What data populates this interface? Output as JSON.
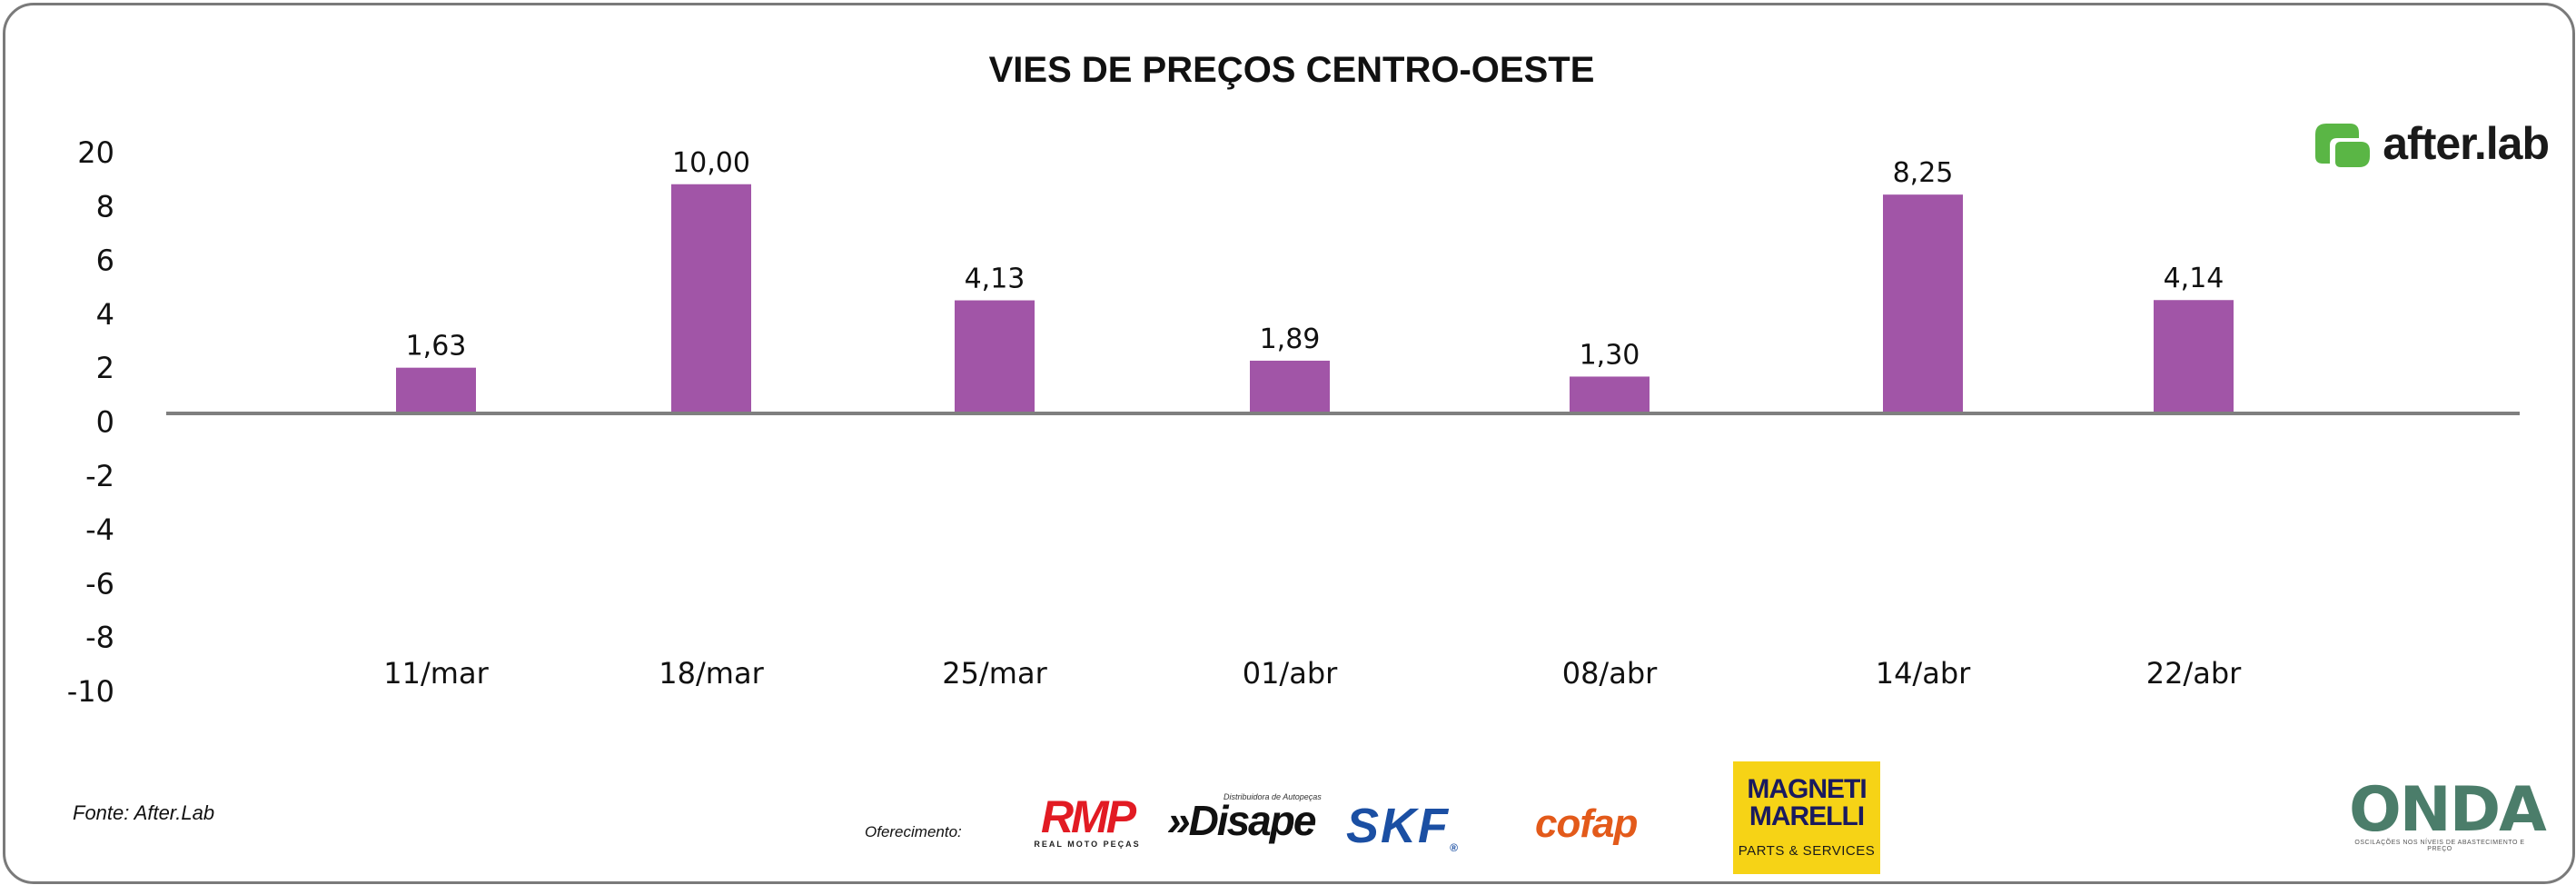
{
  "chart_data": {
    "type": "bar",
    "title": "VIES DE PREÇOS CENTRO-OESTE",
    "categories": [
      "11/mar",
      "18/mar",
      "25/mar",
      "01/abr",
      "08/abr",
      "14/abr",
      "22/abr"
    ],
    "values": [
      1.63,
      10.0,
      4.13,
      1.89,
      1.3,
      8.25,
      4.14
    ],
    "data_labels": [
      "1,63",
      "10,00",
      "4,13",
      "1,89",
      "1,30",
      "8,25",
      "4,14"
    ],
    "y_ticks": [
      "20",
      "8",
      "6",
      "4",
      "2",
      "0",
      "-2",
      "-4",
      "-6",
      "-8",
      "-10"
    ],
    "ylim": [
      -10,
      20
    ],
    "bar_color": "#a155a7",
    "axis_color": "#7f7f7f",
    "xlabel": "",
    "ylabel": "",
    "grid": false
  },
  "source": "Fonte: After.Lab",
  "offer_label": "Oferecimento:",
  "brand": {
    "name": "after.lab",
    "icon": "after-lab-logo-icon",
    "color": "#5ab645"
  },
  "sponsors": {
    "rmp": {
      "name": "RMP",
      "tagline": "REAL MOTO PEÇAS",
      "color": "#e21b23"
    },
    "disape": {
      "name": "»Disape",
      "tagline": "Distribuidora de Autopeças"
    },
    "skf": {
      "name": "SKF",
      "color": "#1b4fa3"
    },
    "cofap": {
      "name": "cofap",
      "color": "#e35a1a"
    },
    "magneti": {
      "line1": "MAGNETI",
      "line2": "MARELLI",
      "line3": "PARTS & SERVICES",
      "bg": "#f6d316"
    }
  },
  "onda": {
    "name": "ONDA",
    "tagline": "OSCILAÇÕES NOS NÍVEIS DE ABASTECIMENTO E PREÇO"
  }
}
